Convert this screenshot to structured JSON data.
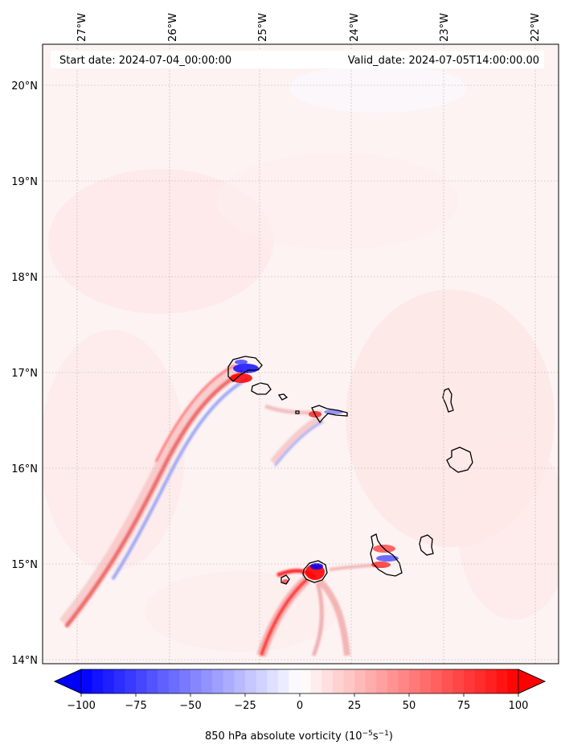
{
  "map": {
    "start_text": "Start date: 2024-07-04_00:00:00",
    "valid_text": "Valid_date: 2024-07-05T14:00:00.00",
    "lon_labels": [
      "27°W",
      "26°W",
      "25°W",
      "24°W",
      "23°W",
      "22°W"
    ],
    "lat_labels": [
      "20°N",
      "19°N",
      "18°N",
      "17°N",
      "16°N",
      "15°N",
      "14°N"
    ]
  },
  "colorbar": {
    "min": -100,
    "max": 100,
    "ticks": [
      "−100",
      "−75",
      "−50",
      "−25",
      "0",
      "25",
      "50",
      "75",
      "100"
    ],
    "label_main": "850 hPa absolute vorticity (10",
    "label_sup1": "−5",
    "label_mid": "s",
    "label_sup2": "−1",
    "label_end": ")",
    "colors": {
      "negative": "#0000ff",
      "neutral": "#ffffff",
      "positive": "#ff0000"
    }
  }
}
